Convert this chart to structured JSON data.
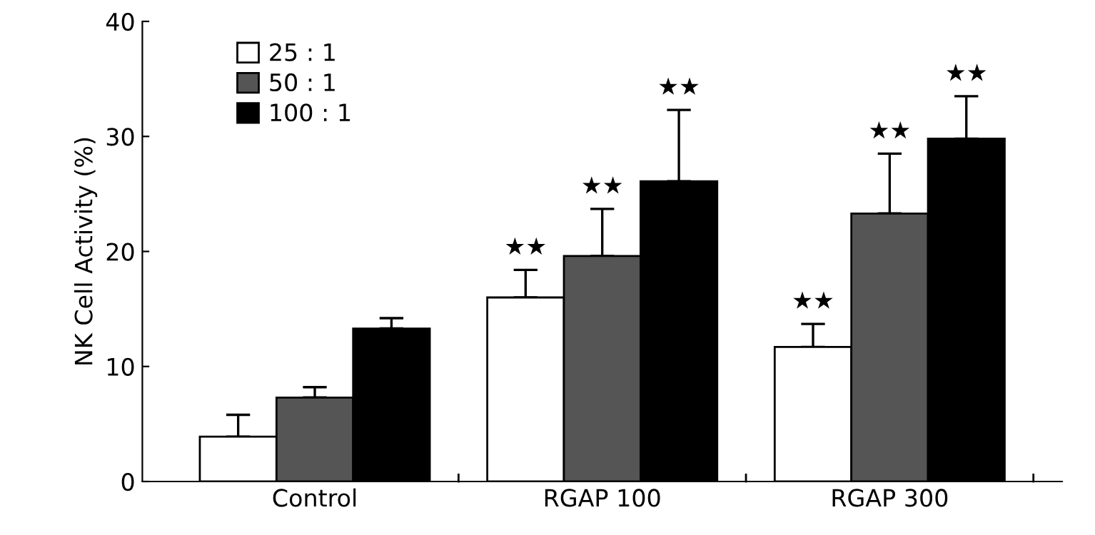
{
  "chart_data": {
    "type": "bar",
    "ylabel": "NK Cell Activity (%)",
    "categories": [
      "Control",
      "RGAP 100",
      "RGAP 300"
    ],
    "series": [
      {
        "name": "25 : 1",
        "color": "#ffffff",
        "values": [
          3.9,
          16.0,
          11.7
        ],
        "errors": [
          [
            3.9,
            5.8
          ],
          [
            16.0,
            18.4
          ],
          [
            11.7,
            13.7
          ]
        ]
      },
      {
        "name": "50 : 1",
        "color": "#555555",
        "values": [
          7.3,
          19.6,
          23.3
        ],
        "errors": [
          [
            7.3,
            8.2
          ],
          [
            19.6,
            23.7
          ],
          [
            23.3,
            28.5
          ]
        ]
      },
      {
        "name": "100 : 1",
        "color": "#000000",
        "values": [
          13.3,
          26.1,
          29.8
        ],
        "errors": [
          [
            13.3,
            14.2
          ],
          [
            26.1,
            32.3
          ],
          [
            29.8,
            33.5
          ]
        ]
      }
    ],
    "ylim": [
      0,
      40
    ],
    "yticks": [
      0,
      10,
      20,
      30,
      40
    ],
    "legend": "top left",
    "grid": false,
    "annotations": [
      "★★",
      "★★",
      "★★",
      "★★",
      "★★",
      "★★"
    ]
  }
}
